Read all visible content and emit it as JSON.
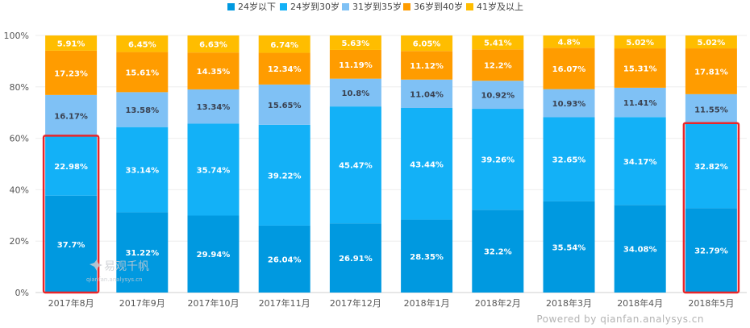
{
  "chart_data": {
    "type": "bar",
    "stacked": true,
    "categories": [
      "2017年8月",
      "2017年9月",
      "2017年10月",
      "2017年11月",
      "2017年12月",
      "2018年1月",
      "2018年2月",
      "2018年3月",
      "2018年4月",
      "2018年5月"
    ],
    "series": [
      {
        "name": "24岁以下",
        "color": "#0099e0",
        "values": [
          37.7,
          31.22,
          29.94,
          26.04,
          26.91,
          28.35,
          32.2,
          35.54,
          34.08,
          32.79
        ]
      },
      {
        "name": "24岁到30岁",
        "color": "#13b1f7",
        "values": [
          22.98,
          33.14,
          35.74,
          39.22,
          45.47,
          43.44,
          39.26,
          32.65,
          34.17,
          32.82
        ]
      },
      {
        "name": "31岁到35岁",
        "color": "#7fc1f5",
        "values": [
          16.17,
          13.58,
          13.34,
          15.65,
          10.8,
          11.04,
          10.92,
          10.93,
          11.41,
          11.55
        ]
      },
      {
        "name": "36岁到40岁",
        "color": "#ff9c00",
        "values": [
          17.23,
          15.61,
          14.35,
          12.34,
          11.19,
          11.12,
          12.2,
          16.07,
          15.31,
          17.81
        ]
      },
      {
        "name": "41岁及以上",
        "color": "#ffbd00",
        "values": [
          5.91,
          6.45,
          6.63,
          6.74,
          5.63,
          6.05,
          5.41,
          4.8,
          5.02,
          5.02
        ]
      }
    ],
    "ylim": [
      0,
      100
    ],
    "yticks": [
      "0%",
      "20%",
      "40%",
      "60%",
      "80%",
      "100%"
    ],
    "legend_position": "top-center",
    "grid": true,
    "highlighted_categories": [
      "2017年8月",
      "2018年5月"
    ],
    "highlight_color": "#e8262a"
  },
  "watermark": {
    "brand": "易观千帆",
    "url": "qianfan.analysys.cn"
  },
  "footer": {
    "powered_by": "Powered by qianfan.analysys.cn"
  }
}
